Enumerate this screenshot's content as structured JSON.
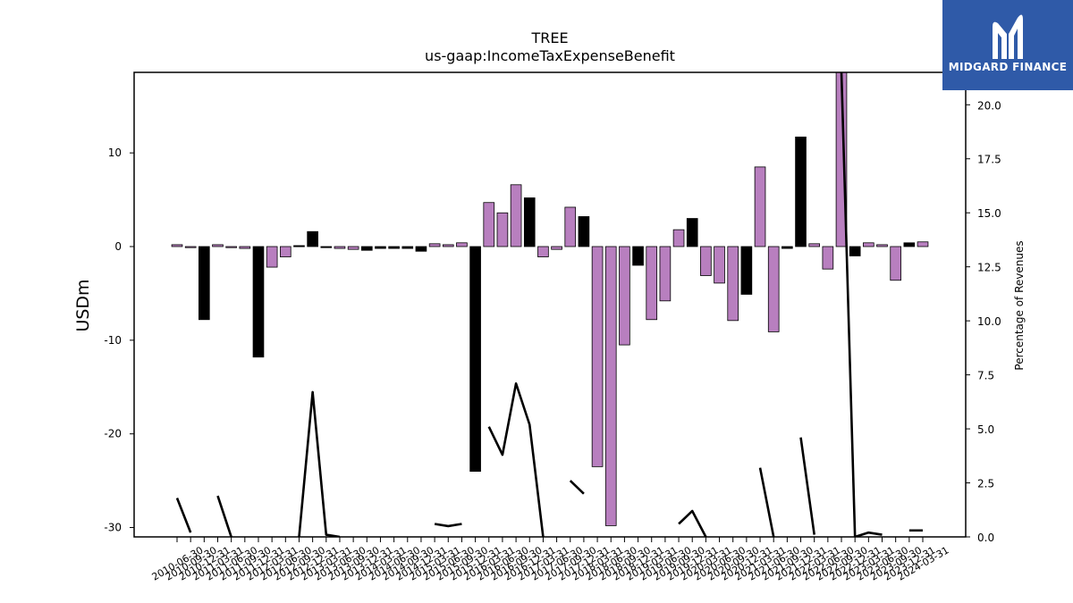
{
  "brand": {
    "name": "MIDGARD FINANCE",
    "bg": "#2f5aa8",
    "icon": "midgard-logo-icon"
  },
  "chart_data": {
    "type": "bar",
    "title": "TREE",
    "subtitle": "us-gaap:IncomeTaxExpenseBenefit",
    "ylabel": "USDm",
    "y2label": "Percentage of Revenues",
    "ylim": [
      -31,
      18.6
    ],
    "y2lim": [
      0,
      21.5
    ],
    "yticks": [
      10,
      0,
      -10,
      -20,
      -30
    ],
    "y2ticks": [
      0.0,
      2.5,
      5.0,
      7.5,
      10.0,
      12.5,
      15.0,
      17.5,
      20.0
    ],
    "colors": {
      "positive_change": "#b87fbf",
      "negative_change": "#000000",
      "line": "#000000"
    },
    "categories": [
      "2010-06-30",
      "2010-09-30",
      "2010-12-31",
      "2011-03-31",
      "2011-06-30",
      "2011-09-30",
      "2011-12-31",
      "2012-03-31",
      "2012-06-30",
      "2012-09-30",
      "2012-12-31",
      "2013-03-31",
      "2013-06-30",
      "2013-09-30",
      "2013-12-31",
      "2014-03-31",
      "2014-06-30",
      "2014-09-30",
      "2014-12-31",
      "2015-03-31",
      "2015-06-30",
      "2015-09-30",
      "2015-12-31",
      "2016-03-31",
      "2016-06-30",
      "2016-09-30",
      "2016-12-31",
      "2017-03-31",
      "2017-06-30",
      "2017-09-30",
      "2017-12-31",
      "2018-03-31",
      "2018-06-30",
      "2018-09-30",
      "2018-12-31",
      "2019-03-31",
      "2019-06-30",
      "2019-09-30",
      "2019-12-31",
      "2020-03-31",
      "2020-06-30",
      "2020-09-30",
      "2020-12-31",
      "2021-03-31",
      "2021-06-30",
      "2021-09-30",
      "2021-12-31",
      "2022-03-31",
      "2022-06-30",
      "2022-09-30",
      "2022-12-31",
      "2023-03-31",
      "2023-06-30",
      "2023-09-30",
      "2023-12-31",
      "2024-03-31"
    ],
    "xtick_labels": [
      "2010-06-30",
      "2010-09-30",
      "2010-12-31",
      "2011-03-31",
      "2011-06-30",
      "2011-09-30",
      "2011-12-31",
      "2012-03-31",
      "2012-06-30",
      "2012-09-30",
      "2012-12-31",
      "2013-03-31",
      "2013-06-30",
      "2013-09-30",
      "2013-12-31",
      "2014-03-31",
      "2014-06-30",
      "2014-09-30",
      "2014-12-31",
      "2015-03-31",
      "2015-06-30",
      "2015-09-30",
      "2015-12-31",
      "2016-03-31",
      "2016-06-30",
      "2016-09-30",
      "2016-12-31",
      "2017-03-31",
      "2017-06-30",
      "2017-09-30",
      "2017-12-31",
      "2018-03-31",
      "2018-06-30",
      "2018-09-30",
      "2018-12-31",
      "2019-03-31",
      "2019-06-30",
      "2019-09-30",
      "2019-12-31",
      "2020-03-31",
      "2020-06-30",
      "2020-09-30",
      "2020-12-31",
      "2021-03-31",
      "2021-06-30",
      "2021-09-30",
      "2021-12-31",
      "2022-03-31",
      "2022-06-30",
      "2022-09-30",
      "2022-12-31",
      "2023-03-31",
      "2023-06-30",
      "2023-09-30",
      "2023-12-31",
      "2024-03-31"
    ],
    "bar_values": [
      0.2,
      -0.1,
      -7.8,
      0.2,
      -0.1,
      -0.2,
      -11.8,
      -2.2,
      -1.1,
      0.1,
      1.6,
      -0.1,
      -0.2,
      -0.3,
      -0.4,
      -0.2,
      -0.2,
      -0.2,
      -0.5,
      0.3,
      0.2,
      0.4,
      -24.0,
      4.7,
      3.6,
      6.6,
      5.2,
      -1.1,
      -0.3,
      4.2,
      3.2,
      -23.5,
      -29.8,
      -10.5,
      -2.0,
      -7.8,
      -5.8,
      1.8,
      3.0,
      -3.1,
      -3.9,
      -7.9,
      -5.1,
      8.5,
      -9.1,
      -0.2,
      11.7,
      0.3,
      -2.4,
      19.5,
      -1.0,
      0.4,
      0.2,
      -3.6,
      0.4,
      0.5
    ],
    "bar_colors": [
      "p",
      "p",
      "k",
      "p",
      "p",
      "p",
      "k",
      "p",
      "p",
      "k",
      "k",
      "k",
      "p",
      "p",
      "k",
      "k",
      "k",
      "k",
      "k",
      "p",
      "p",
      "p",
      "k",
      "p",
      "p",
      "p",
      "k",
      "p",
      "p",
      "p",
      "k",
      "p",
      "p",
      "p",
      "k",
      "p",
      "p",
      "p",
      "k",
      "p",
      "p",
      "p",
      "k",
      "p",
      "p",
      "k",
      "k",
      "p",
      "p",
      "p",
      "k",
      "p",
      "p",
      "p",
      "k",
      "p"
    ],
    "pct_revenues": [
      1.8,
      0.2,
      null,
      1.9,
      0.0,
      null,
      null,
      null,
      null,
      0.0,
      6.7,
      0.1,
      0.0,
      null,
      null,
      0.0,
      null,
      0.0,
      null,
      0.6,
      0.5,
      0.6,
      null,
      5.1,
      3.8,
      7.1,
      5.2,
      0.0,
      null,
      2.6,
      2.0,
      null,
      null,
      null,
      null,
      null,
      null,
      0.6,
      1.2,
      0.0,
      null,
      null,
      null,
      3.2,
      0.0,
      null,
      4.6,
      0.1,
      null,
      21.5,
      0.0,
      0.2,
      0.1,
      null,
      0.3,
      0.3
    ]
  }
}
